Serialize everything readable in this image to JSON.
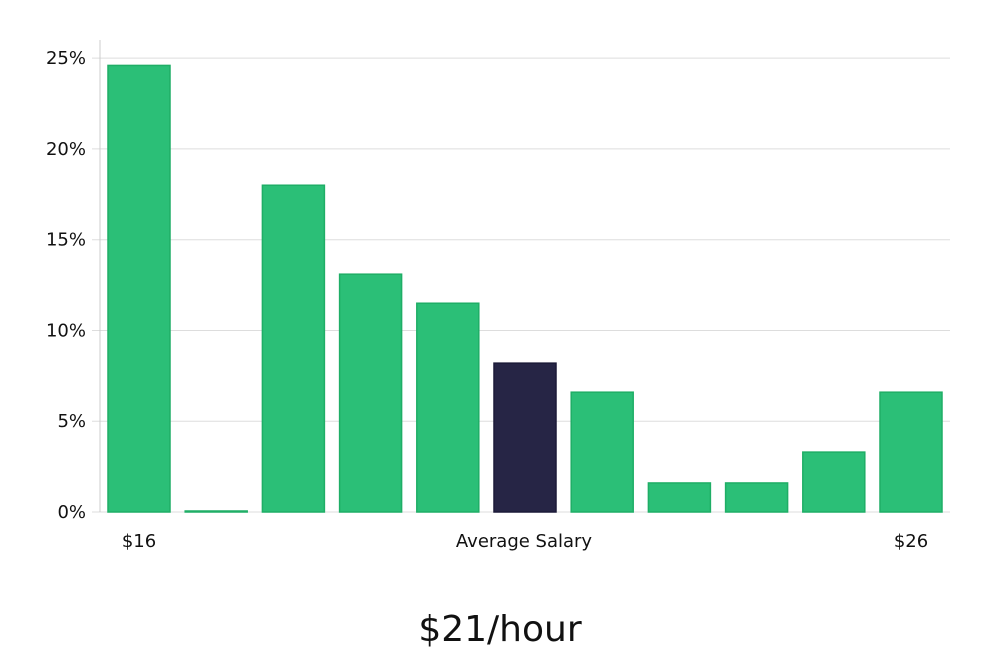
{
  "chart_data": {
    "type": "bar",
    "title": "",
    "xlabel": "",
    "ylabel": "",
    "ylim": [
      0,
      26
    ],
    "y_ticks": [
      0,
      5,
      10,
      15,
      20,
      25
    ],
    "y_tick_labels": [
      "0%",
      "5%",
      "10%",
      "15%",
      "20%",
      "25%"
    ],
    "x_labels": {
      "left": "$16",
      "center": "Average Salary",
      "right": "$26"
    },
    "values": [
      24.6,
      0.05,
      18.0,
      13.1,
      11.5,
      8.2,
      6.6,
      1.6,
      1.6,
      3.3,
      6.6
    ],
    "highlight_index": 5,
    "grid": true,
    "legend": "none"
  },
  "summary": {
    "value": "$21/hour"
  },
  "colors": {
    "bar": "#2bbf77",
    "bar_stroke": "#1fae66",
    "highlight": "#262545",
    "grid": "#dddddd",
    "axis": "#cccccc"
  }
}
